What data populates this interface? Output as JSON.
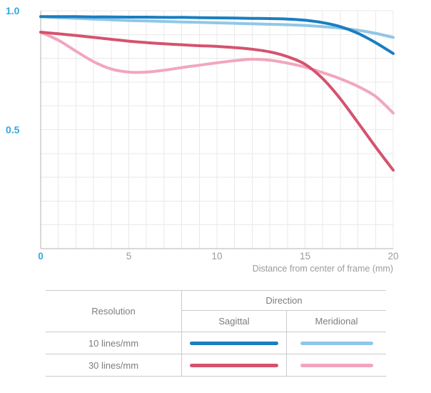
{
  "chart_data": {
    "type": "line",
    "title": "",
    "xlabel": "Distance from center of frame (mm)",
    "ylabel": "",
    "xlim": [
      0,
      20
    ],
    "ylim": [
      0,
      1.0
    ],
    "x_grid_step": 1,
    "y_grid_step": 0.1,
    "grid": true,
    "grid_color": "#e9e9e9",
    "axis_line_color": "#b3b3b3",
    "axis_label_color": "#2fa9dd",
    "tick_label_color": "#9b9b9b",
    "x_ticks": [
      {
        "v": 0,
        "label": "0"
      },
      {
        "v": 5,
        "label": "5"
      },
      {
        "v": 10,
        "label": "10"
      },
      {
        "v": 15,
        "label": "15"
      },
      {
        "v": 20,
        "label": "20"
      }
    ],
    "y_ticks": [
      {
        "v": 1.0,
        "label": "1.0"
      },
      {
        "v": 0.5,
        "label": "0.5"
      }
    ],
    "x": [
      0,
      1,
      2,
      3,
      4,
      5,
      6,
      7,
      8,
      9,
      10,
      11,
      12,
      13,
      14,
      15,
      16,
      17,
      18,
      19,
      20
    ],
    "series": [
      {
        "name": "10 lines/mm Sagittal",
        "color": "#1b7ec0",
        "values": [
          0.975,
          0.975,
          0.975,
          0.974,
          0.974,
          0.973,
          0.973,
          0.972,
          0.972,
          0.971,
          0.97,
          0.969,
          0.968,
          0.967,
          0.965,
          0.96,
          0.95,
          0.933,
          0.905,
          0.866,
          0.82
        ]
      },
      {
        "name": "10 lines/mm Meridional",
        "color": "#8fc7e8",
        "values": [
          0.975,
          0.971,
          0.968,
          0.965,
          0.962,
          0.959,
          0.957,
          0.955,
          0.953,
          0.951,
          0.949,
          0.947,
          0.945,
          0.943,
          0.941,
          0.938,
          0.933,
          0.927,
          0.918,
          0.905,
          0.888
        ]
      },
      {
        "name": "30 lines/mm Sagittal",
        "color": "#d4536e",
        "values": [
          0.91,
          0.903,
          0.896,
          0.888,
          0.88,
          0.872,
          0.866,
          0.861,
          0.857,
          0.853,
          0.85,
          0.845,
          0.838,
          0.827,
          0.807,
          0.775,
          0.715,
          0.63,
          0.53,
          0.428,
          0.33
        ]
      },
      {
        "name": "30 lines/mm Meridional",
        "color": "#f2a6be",
        "values": [
          0.91,
          0.876,
          0.83,
          0.786,
          0.755,
          0.742,
          0.742,
          0.75,
          0.761,
          0.771,
          0.781,
          0.79,
          0.796,
          0.792,
          0.78,
          0.763,
          0.74,
          0.714,
          0.682,
          0.64,
          0.57
        ]
      }
    ],
    "legend_position": "bottom-table"
  },
  "legend": {
    "resolution_header": "Resolution",
    "direction_header": "Direction",
    "sagittal_header": "Sagittal",
    "meridional_header": "Meridional",
    "rows": [
      {
        "label": "10 lines/mm"
      },
      {
        "label": "30 lines/mm"
      }
    ]
  }
}
